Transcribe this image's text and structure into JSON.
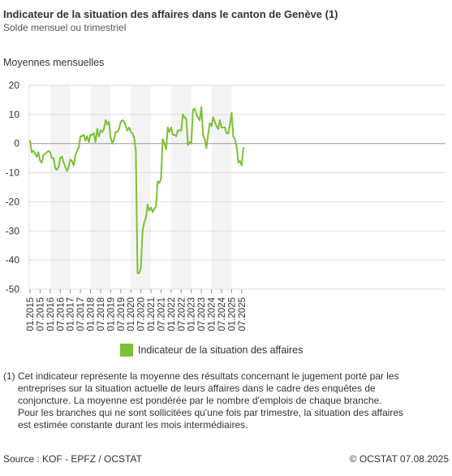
{
  "title": "Indicateur de la situation des affaires dans le canton de Genève (1)",
  "subtitle": "Solde mensuel ou trimestriel",
  "section_label": "Moyennes mensuelles",
  "colors": {
    "series": "#7cc136",
    "grid": "#dddddd",
    "band": "#f4f4f4",
    "zero_line": "#999999",
    "text": "#333333"
  },
  "chart_data": {
    "type": "line",
    "ylim": [
      -50,
      20
    ],
    "yticks": [
      20,
      10,
      0,
      -10,
      -20,
      -30,
      -40,
      -50
    ],
    "xlabels": [
      "01.2015",
      "07.2015",
      "01.2016",
      "07.2016",
      "01.2017",
      "07.2017",
      "01.2018",
      "07.2018",
      "01.2019",
      "07.2019",
      "01.2020",
      "07.2020",
      "01.2021",
      "07.2021",
      "01.2022",
      "07.2022",
      "01.2023",
      "07.2023",
      "01.2024",
      "07.2024",
      "01.2025",
      "07.2025"
    ],
    "grid": true,
    "legend_position": "bottom",
    "series": [
      {
        "name": "Indicateur de la situation des affaires",
        "start": "01.2015",
        "frequency": "monthly",
        "values": [
          1,
          -3,
          -2.5,
          -3.5,
          -4.5,
          -3,
          -6,
          -6.5,
          -4,
          -3.5,
          -3,
          -2.5,
          -3,
          -5,
          -5,
          -8.5,
          -9,
          -8,
          -5,
          -4.5,
          -6.5,
          -8,
          -9.5,
          -8,
          -5.5,
          -6,
          -7.5,
          -4,
          -2.5,
          -1.5,
          2.5,
          2.5,
          3,
          1,
          2.5,
          0.5,
          3,
          3,
          3.5,
          0.5,
          5,
          2.5,
          4.5,
          4,
          5,
          8,
          6.5,
          7.5,
          2,
          0,
          1.5,
          4,
          4,
          5,
          7.5,
          8,
          7.5,
          6,
          4.5,
          5.5,
          4,
          3.5,
          2,
          -2.5,
          -44.5,
          -44.5,
          -42.5,
          -30,
          -27,
          -25.5,
          -21,
          -23,
          -22,
          -23.5,
          -22.5,
          -21.5,
          -13,
          -13.5,
          -12,
          1.5,
          0,
          -2,
          5.5,
          4,
          5.5,
          3,
          3,
          2.5,
          4.5,
          4.5,
          4.5,
          10,
          9,
          8.5,
          -0.5,
          0.5,
          0,
          11.5,
          12,
          10,
          9,
          8,
          12.5,
          3,
          1.5,
          -1.5,
          3,
          7,
          6,
          9,
          7.5,
          6,
          5,
          8,
          5.5,
          5.5,
          5.5,
          3.5,
          3.5,
          6.5,
          10.5,
          2.5,
          1.5,
          -1,
          -6.5,
          -6,
          -7.5,
          -1.5
        ]
      }
    ]
  },
  "legend_label": "Indicateur de la situation des affaires",
  "footnote": {
    "line1": "(1) Cet indicateur représente la moyenne des résultats concernant le jugement porté par les",
    "line2": "entreprises sur la situation actuelle de leurs affaires dans le cadre des enquêtes de",
    "line3": "conjoncture. La moyenne est pondérée par le nombre d'emplois de chaque branche.",
    "line4": "Pour les branches qui ne sont sollicitées qu'une fois par trimestre, la situation des affaires",
    "line5": "est estimée constante durant les mois intermédiaires."
  },
  "source": "Source : KOF - EPFZ / OCSTAT",
  "copyright": "© OCSTAT 07.08.2025"
}
